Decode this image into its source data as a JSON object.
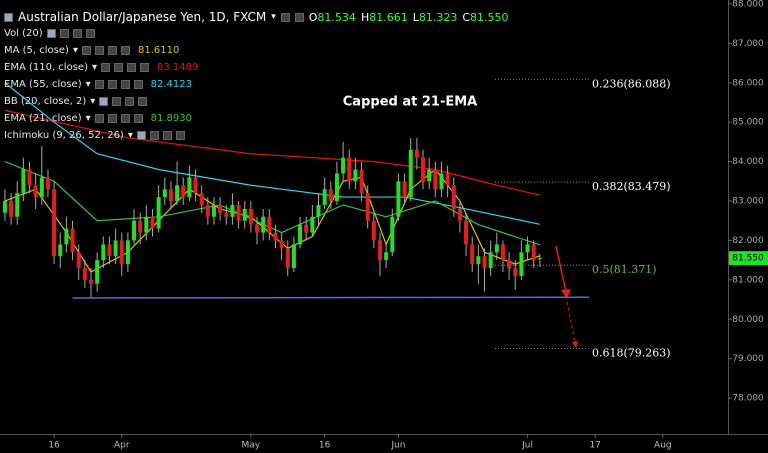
{
  "header": {
    "symbol": "Australian Dollar/Japanese Yen, 1D, FXCM",
    "ohlc": [
      {
        "key": "O",
        "value": "81.534"
      },
      {
        "key": "H",
        "value": "81.661"
      },
      {
        "key": "L",
        "value": "81.323"
      },
      {
        "key": "C",
        "value": "81.550"
      }
    ]
  },
  "chart_data": {
    "type": "candlestick",
    "annotation": "Capped at 21-EMA",
    "studies": [
      "Vol (20)",
      "BB (20, close, 2)",
      "Ichimoku (9, 26, 52, 26)"
    ],
    "categories": [
      null,
      null,
      null,
      null,
      null,
      null,
      null,
      null,
      null,
      null,
      null,
      null,
      null,
      null,
      null,
      null,
      null,
      null,
      null,
      null,
      null,
      null,
      null,
      null,
      null,
      null,
      null,
      null,
      null,
      null,
      null,
      null,
      null,
      null,
      null,
      null,
      null,
      null,
      null,
      null,
      null,
      null,
      null,
      null,
      null,
      null,
      null,
      null,
      null,
      null,
      null,
      null,
      null,
      null,
      null,
      null,
      null,
      null,
      null,
      null,
      null,
      null,
      null,
      null,
      null,
      null,
      null,
      null,
      null,
      null,
      null,
      null,
      null,
      null,
      null,
      null,
      null,
      null,
      null,
      null,
      null,
      null,
      null,
      null,
      null,
      null,
      null,
      null
    ],
    "open": [
      82.7,
      83.0,
      82.6,
      83.2,
      83.8,
      83.4,
      83.1,
      83.6,
      83.3,
      81.6,
      81.9,
      82.3,
      81.7,
      81.3,
      81.0,
      80.9,
      81.5,
      81.9,
      81.6,
      82.0,
      81.4,
      82.0,
      82.5,
      82.2,
      82.6,
      82.3,
      83.1,
      83.3,
      83.0,
      83.4,
      83.1,
      83.6,
      83.2,
      82.9,
      82.6,
      82.9,
      82.7,
      82.6,
      82.9,
      82.5,
      82.8,
      82.4,
      82.2,
      82.6,
      82.2,
      82.0,
      81.8,
      81.3,
      81.9,
      82.4,
      82.2,
      82.6,
      82.9,
      83.3,
      83.0,
      83.7,
      84.1,
      83.5,
      83.8,
      83.2,
      82.5,
      82.0,
      81.5,
      81.7,
      82.6,
      83.5,
      83.1,
      84.3,
      84.1,
      83.5,
      83.8,
      83.3,
      83.7,
      83.4,
      82.8,
      82.5,
      81.9,
      81.4,
      81.6,
      81.3,
      81.7,
      81.9,
      81.5,
      81.3,
      81.1,
      81.7,
      81.9,
      81.534
    ],
    "high": [
      83.3,
      83.2,
      83.5,
      84.1,
      84.0,
      83.7,
      84.4,
      83.8,
      83.5,
      82.2,
      82.6,
      82.5,
      81.9,
      81.5,
      81.3,
      81.7,
      82.1,
      82.1,
      82.3,
      82.2,
      82.2,
      82.8,
      82.7,
      82.9,
      82.8,
      83.4,
      83.6,
      83.5,
      84.0,
      83.6,
      83.9,
      83.8,
      83.4,
      83.1,
      83.1,
      83.1,
      82.9,
      83.2,
      83.0,
      83.0,
      83.0,
      82.6,
      82.8,
      82.8,
      82.4,
      82.2,
      82.0,
      82.1,
      82.6,
      82.6,
      82.9,
      83.2,
      83.6,
      83.5,
      84.0,
      84.5,
      84.3,
      84.1,
      84.0,
      83.4,
      82.7,
      82.2,
      81.9,
      82.8,
      83.7,
      83.7,
      84.6,
      84.6,
      84.3,
      84.1,
      84.0,
      84.0,
      83.9,
      83.6,
      83.0,
      82.7,
      82.1,
      81.9,
      81.8,
      82.0,
      82.2,
      82.0,
      81.7,
      81.5,
      82.0,
      82.1,
      82.0,
      81.661
    ],
    "low": [
      82.5,
      82.4,
      82.4,
      83.0,
      83.2,
      82.8,
      82.9,
      83.1,
      81.4,
      81.3,
      81.7,
      81.5,
      81.0,
      80.8,
      80.55,
      80.7,
      81.3,
      81.4,
      81.4,
      81.1,
      81.2,
      81.9,
      81.9,
      82.0,
      82.1,
      82.2,
      82.9,
      82.8,
      82.9,
      82.9,
      83.0,
      83.0,
      82.7,
      82.4,
      82.4,
      82.5,
      82.4,
      82.4,
      82.3,
      82.3,
      82.2,
      81.9,
      82.0,
      82.0,
      81.8,
      81.5,
      81.1,
      81.2,
      81.8,
      82.0,
      82.1,
      82.4,
      82.8,
      82.8,
      82.9,
      83.5,
      83.3,
      83.3,
      83.0,
      82.3,
      81.8,
      81.1,
      81.3,
      81.6,
      82.5,
      82.9,
      83.0,
      83.8,
      83.3,
      83.3,
      83.1,
      83.1,
      83.1,
      82.6,
      82.2,
      81.6,
      81.2,
      80.9,
      80.7,
      81.1,
      81.5,
      81.2,
      81.0,
      80.75,
      81.0,
      81.5,
      81.3,
      81.323
    ],
    "close": [
      83.0,
      82.6,
      83.2,
      83.8,
      83.4,
      83.1,
      83.6,
      83.3,
      81.6,
      81.9,
      82.3,
      81.7,
      81.3,
      81.0,
      80.9,
      81.5,
      81.9,
      81.6,
      82.0,
      81.4,
      82.0,
      82.5,
      82.2,
      82.6,
      82.3,
      83.1,
      83.3,
      83.0,
      83.4,
      83.1,
      83.6,
      83.2,
      82.9,
      82.6,
      82.9,
      82.7,
      82.6,
      82.9,
      82.5,
      82.8,
      82.4,
      82.2,
      82.6,
      82.2,
      82.0,
      81.8,
      81.3,
      81.9,
      82.4,
      82.2,
      82.6,
      82.9,
      83.3,
      83.0,
      83.7,
      84.1,
      83.5,
      83.8,
      83.2,
      82.5,
      82.0,
      81.5,
      81.7,
      82.6,
      83.5,
      83.1,
      84.3,
      84.1,
      83.5,
      83.8,
      83.3,
      83.7,
      83.4,
      82.8,
      82.5,
      81.9,
      81.4,
      81.6,
      81.3,
      81.7,
      81.9,
      81.5,
      81.3,
      81.1,
      81.7,
      81.9,
      81.5,
      81.55
    ],
    "up_color": "#22e022",
    "down_color": "#e81c1c",
    "series": [
      {
        "name": "MA (5, close)",
        "legend_value": "81.6110",
        "color": "#d8c800",
        "x": [
          0,
          5,
          10,
          14,
          20,
          25,
          30,
          35,
          40,
          46,
          50,
          55,
          58,
          62,
          66,
          70,
          74,
          78,
          83,
          87
        ],
        "values": [
          83.0,
          83.3,
          82.2,
          81.2,
          81.7,
          82.5,
          83.3,
          82.8,
          82.6,
          81.8,
          82.1,
          83.5,
          83.6,
          81.9,
          83.3,
          83.8,
          83.0,
          81.7,
          81.4,
          81.61
        ]
      },
      {
        "name": "EMA (110, close)",
        "legend_value": "83.1489",
        "color": "#e0141e",
        "x": [
          0,
          20,
          40,
          60,
          70,
          80,
          87
        ],
        "values": [
          85.3,
          84.6,
          84.2,
          84.0,
          83.8,
          83.4,
          83.15
        ]
      },
      {
        "name": "EMA (55, close)",
        "legend_value": "82.4123",
        "color": "#2ed6ec",
        "x": [
          0,
          8,
          15,
          25,
          40,
          55,
          65,
          75,
          87
        ],
        "values": [
          86.0,
          85.0,
          84.2,
          83.8,
          83.4,
          83.1,
          83.1,
          82.8,
          82.41
        ]
      },
      {
        "name": "EMA (21, close)",
        "legend_value": "81.8930",
        "color": "#3cc03c",
        "x": [
          0,
          8,
          15,
          25,
          35,
          45,
          55,
          62,
          70,
          77,
          87
        ],
        "values": [
          84.0,
          83.5,
          82.5,
          82.6,
          82.9,
          82.2,
          82.9,
          82.6,
          83.0,
          82.4,
          81.89
        ]
      }
    ],
    "trendline": {
      "x": [
        11,
        95
      ],
      "values": [
        80.54,
        80.56
      ],
      "color": "#4a6fe0"
    },
    "fib_levels": [
      {
        "value": 86.088,
        "label": "0.236(86.088)",
        "color": "#ffffff"
      },
      {
        "value": 83.479,
        "label": "0.382(83.479)",
        "color": "#ffffff"
      },
      {
        "value": 81.371,
        "label": "0.5(81.371)",
        "color": "#5fb85f"
      },
      {
        "value": 79.263,
        "label": "0.618(79.263)",
        "color": "#ffffff"
      }
    ],
    "last_price": {
      "value": 81.55,
      "label": "81.550",
      "color": "#22e022"
    },
    "xlim": [
      -0.8,
      117.6
    ],
    "ylim": [
      77.14,
      88.1
    ],
    "xticks": [
      {
        "value": 8,
        "label": "16"
      },
      {
        "value": 19,
        "label": "Apr"
      },
      {
        "value": 40,
        "label": "May"
      },
      {
        "value": 52,
        "label": "16"
      },
      {
        "value": 64,
        "label": "Jun"
      },
      {
        "value": 85,
        "label": "Jul"
      },
      {
        "value": 96,
        "label": "17"
      },
      {
        "value": 107,
        "label": "Aug"
      }
    ],
    "yticks": [
      {
        "value": 78,
        "label": "78.000"
      },
      {
        "value": 79,
        "label": "79.000"
      },
      {
        "value": 80,
        "label": "80.000"
      },
      {
        "value": 81,
        "label": "81.000"
      },
      {
        "value": 82,
        "label": "82.000"
      },
      {
        "value": 83,
        "label": "83.000"
      },
      {
        "value": 84,
        "label": "84.000"
      },
      {
        "value": 85,
        "label": "85.000"
      },
      {
        "value": 86,
        "label": "86.000"
      },
      {
        "value": 87,
        "label": "87.000"
      },
      {
        "value": 88,
        "label": "88.000"
      }
    ]
  }
}
